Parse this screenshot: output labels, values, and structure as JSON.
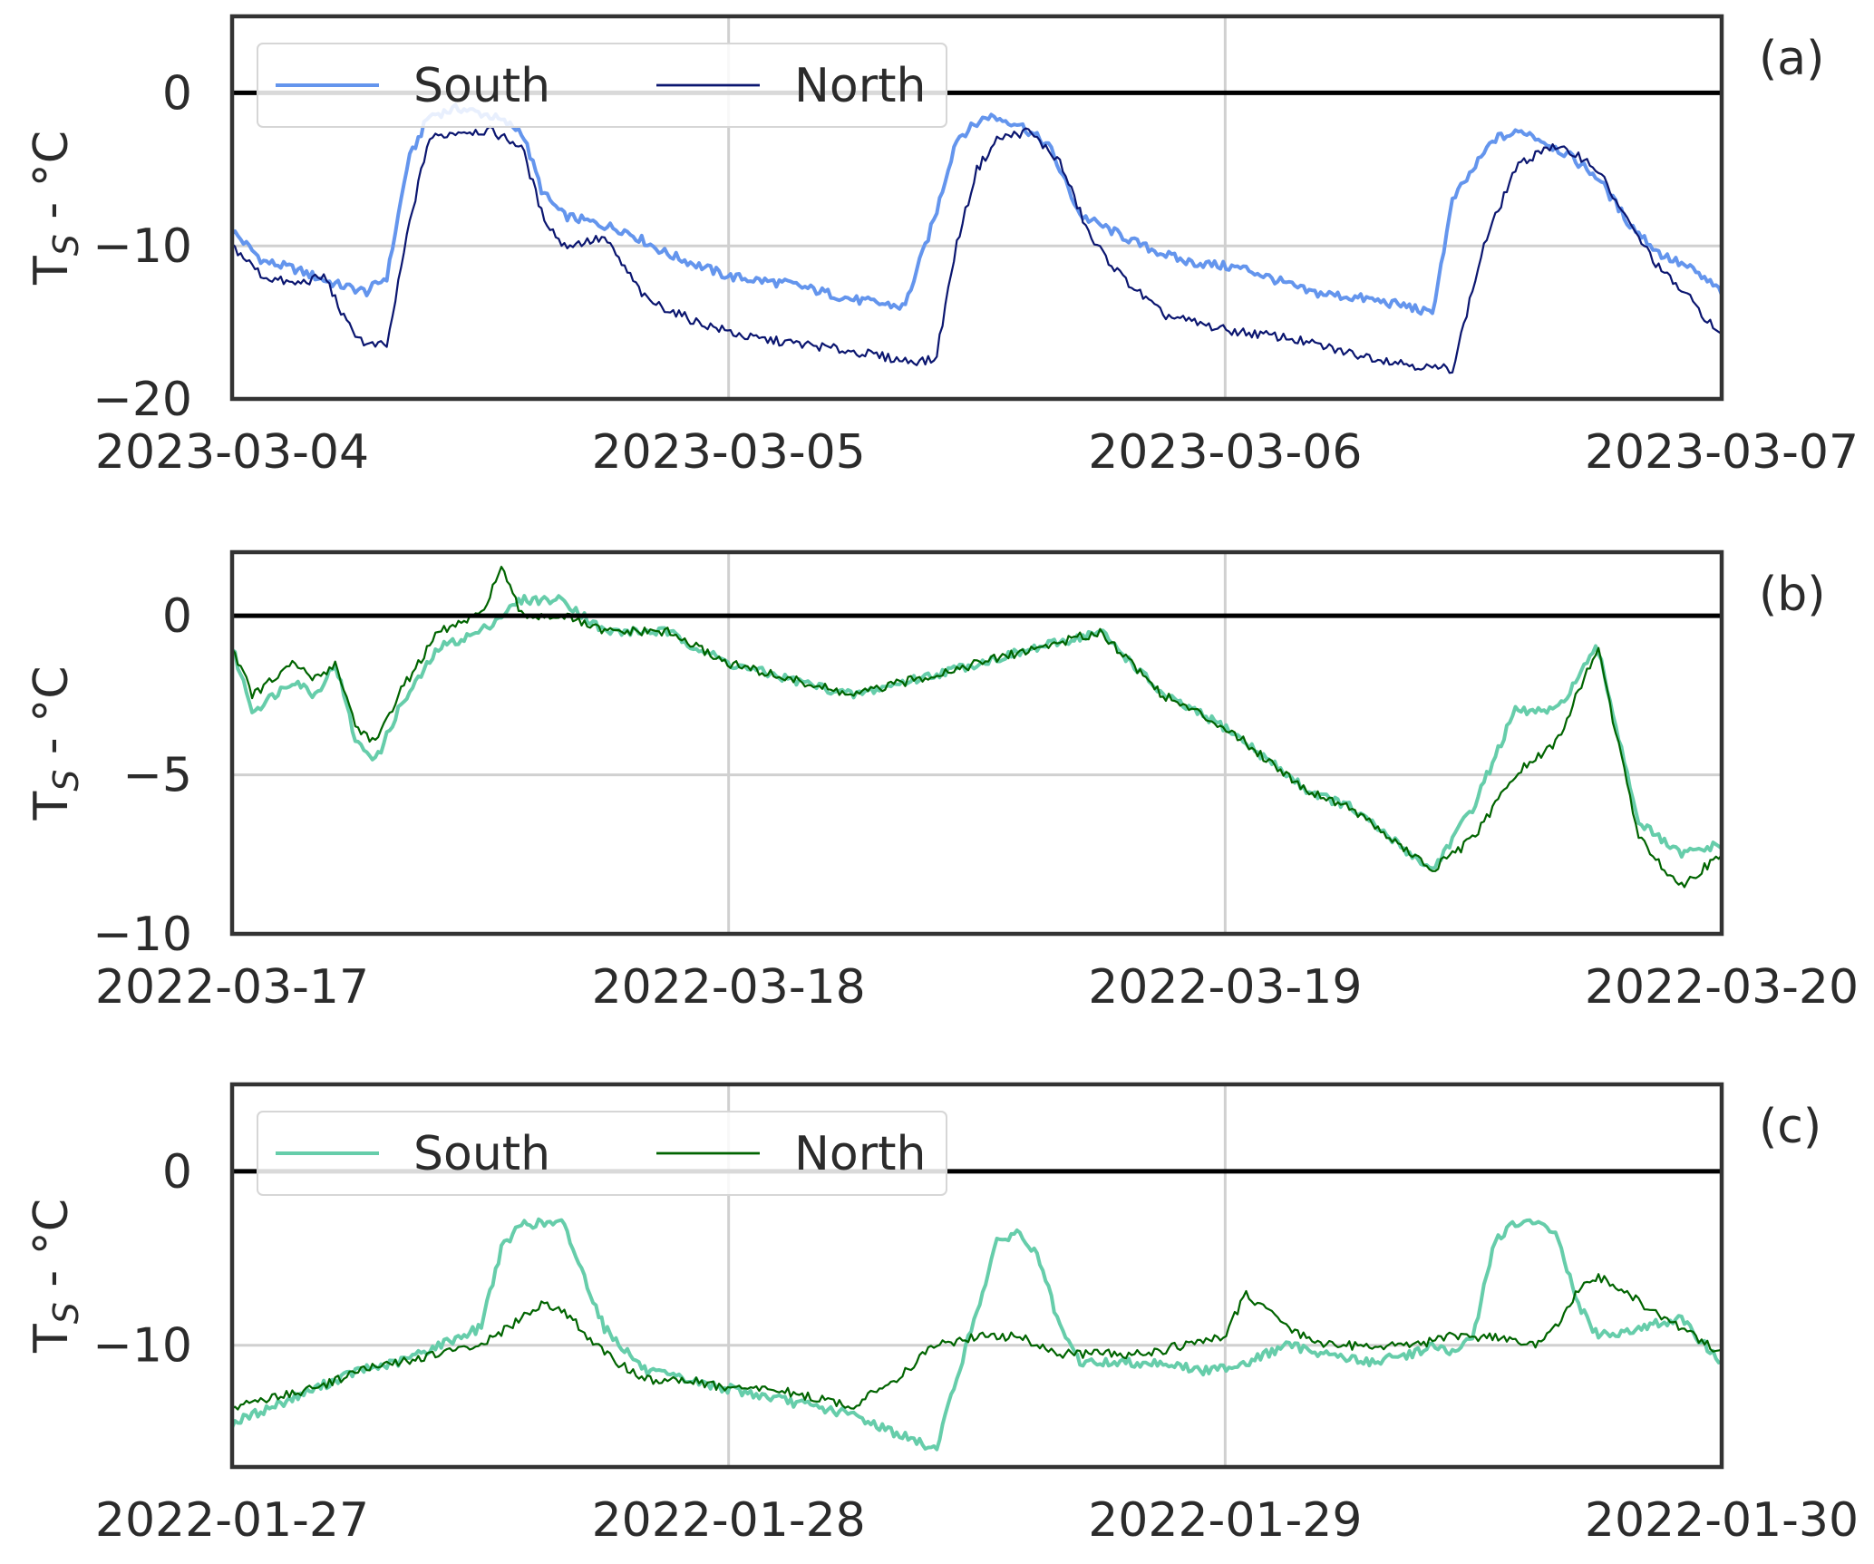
{
  "chart_data": [
    {
      "type": "line",
      "panel_label": "(a)",
      "ylabel": "T",
      "ylabel_sub": "S",
      "ylabel_tail": " - °C",
      "x_tick_labels": [
        "2023-03-04",
        "2023-03-05",
        "2023-03-06",
        "2023-03-07"
      ],
      "xlim": [
        "2023-03-04T00:00",
        "2023-03-07T00:00"
      ],
      "ylim": [
        -20,
        5
      ],
      "y_ticks": [
        0,
        -10,
        -20
      ],
      "y_tick_labels": [
        "0",
        "−10",
        "−20"
      ],
      "grid": true,
      "reference_line": 0,
      "legend": {
        "show": true,
        "placement": "upper-left",
        "entries": [
          "South",
          "North"
        ]
      },
      "colors": {
        "South": "#6495ed",
        "North": "#0b1670"
      },
      "series": [
        {
          "name": "South",
          "x": [
            "2023-03-04T00:00",
            "2023-03-04T01:30",
            "2023-03-04T03:00",
            "2023-03-04T05:00",
            "2023-03-04T06:30",
            "2023-03-04T07:30",
            "2023-03-04T08:30",
            "2023-03-04T09:30",
            "2023-03-04T11:00",
            "2023-03-04T12:30",
            "2023-03-04T14:00",
            "2023-03-04T15:00",
            "2023-03-04T16:00",
            "2023-03-04T17:30",
            "2023-03-04T19:00",
            "2023-03-04T21:00",
            "2023-03-05T00:00",
            "2023-03-05T03:00",
            "2023-03-05T06:00",
            "2023-03-05T08:30",
            "2023-03-05T10:00",
            "2023-03-05T11:00",
            "2023-03-05T12:30",
            "2023-03-05T14:00",
            "2023-03-05T15:30",
            "2023-03-05T17:00",
            "2023-03-05T18:30",
            "2023-03-05T20:00",
            "2023-03-05T22:00",
            "2023-03-06T01:00",
            "2023-03-06T04:00",
            "2023-03-06T07:00",
            "2023-03-06T09:00",
            "2023-03-06T10:00",
            "2023-03-06T11:00",
            "2023-03-06T13:00",
            "2023-03-06T14:30",
            "2023-03-06T16:30",
            "2023-03-06T18:00",
            "2023-03-06T19:30",
            "2023-03-06T21:00",
            "2023-03-06T22:30",
            "2023-03-07T00:00"
          ],
          "y": [
            -9,
            -11,
            -11.5,
            -12.5,
            -13,
            -12,
            -4.5,
            -1.5,
            -1,
            -1.5,
            -2.5,
            -6.5,
            -8,
            -8.5,
            -9,
            -10.5,
            -12,
            -12.5,
            -13.5,
            -14,
            -8,
            -3,
            -1.5,
            -2,
            -3.5,
            -8,
            -9,
            -10,
            -11,
            -11.5,
            -13,
            -13.5,
            -14,
            -14.5,
            -7,
            -3,
            -2.5,
            -4,
            -5.5,
            -8.5,
            -10.5,
            -11.5,
            -13
          ]
        },
        {
          "name": "North",
          "x": [
            "2023-03-04T00:00",
            "2023-03-04T01:30",
            "2023-03-04T03:00",
            "2023-03-04T04:30",
            "2023-03-04T05:30",
            "2023-03-04T06:30",
            "2023-03-04T07:30",
            "2023-03-04T08:30",
            "2023-03-04T09:30",
            "2023-03-04T11:00",
            "2023-03-04T12:30",
            "2023-03-04T14:00",
            "2023-03-04T15:00",
            "2023-03-04T16:00",
            "2023-03-04T18:00",
            "2023-03-04T20:00",
            "2023-03-04T22:30",
            "2023-03-05T01:00",
            "2023-03-05T04:00",
            "2023-03-05T06:30",
            "2023-03-05T08:30",
            "2023-03-05T10:00",
            "2023-03-05T11:00",
            "2023-03-05T12:00",
            "2023-03-05T13:00",
            "2023-03-05T14:30",
            "2023-03-05T16:00",
            "2023-03-05T17:30",
            "2023-03-05T19:00",
            "2023-03-05T21:00",
            "2023-03-06T00:00",
            "2023-03-06T03:00",
            "2023-03-06T06:00",
            "2023-03-06T08:00",
            "2023-03-06T10:00",
            "2023-03-06T11:00",
            "2023-03-06T12:30",
            "2023-03-06T14:00",
            "2023-03-06T15:30",
            "2023-03-06T17:00",
            "2023-03-06T18:00",
            "2023-03-06T19:30",
            "2023-03-06T21:00",
            "2023-03-06T22:30",
            "2023-03-07T00:00"
          ],
          "y": [
            -10,
            -12,
            -12.5,
            -12,
            -15,
            -16.5,
            -16.5,
            -9,
            -3,
            -2.5,
            -2.5,
            -3.5,
            -8,
            -10,
            -9.5,
            -13.5,
            -15,
            -16,
            -16.5,
            -17,
            -17.5,
            -17.5,
            -10,
            -5,
            -3,
            -2.5,
            -4.5,
            -9.5,
            -12,
            -14.5,
            -15.5,
            -16,
            -17,
            -17.5,
            -18,
            -18,
            -10,
            -5,
            -3.5,
            -4,
            -5,
            -8.5,
            -11.5,
            -13.5,
            -16
          ]
        }
      ]
    },
    {
      "type": "line",
      "panel_label": "(b)",
      "ylabel": "T",
      "ylabel_sub": "S",
      "ylabel_tail": " - °C",
      "x_tick_labels": [
        "2022-03-17",
        "2022-03-18",
        "2022-03-19",
        "2022-03-20"
      ],
      "xlim": [
        "2022-03-17T00:00",
        "2022-03-20T00:00"
      ],
      "ylim": [
        -10,
        2
      ],
      "y_ticks": [
        0,
        -5,
        -10
      ],
      "y_tick_labels": [
        "0",
        "−5",
        "−10"
      ],
      "grid": true,
      "reference_line": 0,
      "legend": {
        "show": false
      },
      "colors": {
        "South": "#66cdaa",
        "North": "#006400"
      },
      "series": [
        {
          "name": "South",
          "x": [
            "2022-03-17T00:00",
            "2022-03-17T01:00",
            "2022-03-17T02:00",
            "2022-03-17T03:00",
            "2022-03-17T04:00",
            "2022-03-17T05:00",
            "2022-03-17T06:00",
            "2022-03-17T07:00",
            "2022-03-17T08:00",
            "2022-03-17T10:00",
            "2022-03-17T12:00",
            "2022-03-17T14:00",
            "2022-03-17T16:00",
            "2022-03-17T18:00",
            "2022-03-17T21:00",
            "2022-03-18T00:00",
            "2022-03-18T03:00",
            "2022-03-18T06:00",
            "2022-03-18T09:00",
            "2022-03-18T12:00",
            "2022-03-18T15:00",
            "2022-03-18T18:00",
            "2022-03-18T21:00",
            "2022-03-19T00:00",
            "2022-03-19T02:00",
            "2022-03-19T04:00",
            "2022-03-19T06:00",
            "2022-03-19T08:00",
            "2022-03-19T10:00",
            "2022-03-19T12:00",
            "2022-03-19T14:00",
            "2022-03-19T16:00",
            "2022-03-19T18:00",
            "2022-03-19T20:00",
            "2022-03-19T22:00",
            "2022-03-20T00:00"
          ],
          "y": [
            -1,
            -3,
            -2.5,
            -2,
            -2.5,
            -1.5,
            -4,
            -4.5,
            -3,
            -1,
            -0.5,
            0.5,
            0.5,
            -0.5,
            -0.5,
            -1.5,
            -2,
            -2.5,
            -2,
            -1.5,
            -1,
            -0.5,
            -2.5,
            -3.5,
            -4.5,
            -5.5,
            -6,
            -7,
            -8,
            -6,
            -3,
            -3,
            -1,
            -6.5,
            -7.5,
            -7.2
          ]
        },
        {
          "name": "North",
          "x": [
            "2022-03-17T00:00",
            "2022-03-17T01:00",
            "2022-03-17T02:00",
            "2022-03-17T03:00",
            "2022-03-17T04:00",
            "2022-03-17T05:00",
            "2022-03-17T06:00",
            "2022-03-17T07:00",
            "2022-03-17T08:00",
            "2022-03-17T10:00",
            "2022-03-17T12:00",
            "2022-03-17T13:00",
            "2022-03-17T14:00",
            "2022-03-17T16:00",
            "2022-03-17T18:00",
            "2022-03-17T21:00",
            "2022-03-18T00:00",
            "2022-03-18T03:00",
            "2022-03-18T06:00",
            "2022-03-18T09:00",
            "2022-03-18T12:00",
            "2022-03-18T15:00",
            "2022-03-18T18:00",
            "2022-03-18T21:00",
            "2022-03-19T00:00",
            "2022-03-19T02:00",
            "2022-03-19T04:00",
            "2022-03-19T06:00",
            "2022-03-19T08:00",
            "2022-03-19T10:00",
            "2022-03-19T12:00",
            "2022-03-19T14:00",
            "2022-03-19T16:00",
            "2022-03-19T18:00",
            "2022-03-19T20:00",
            "2022-03-19T22:00",
            "2022-03-20T00:00"
          ],
          "y": [
            -1,
            -2.5,
            -2,
            -1.5,
            -2,
            -1.5,
            -3.5,
            -4,
            -2.5,
            -0.5,
            0,
            1.5,
            0,
            0,
            -0.5,
            -0.5,
            -1.5,
            -2,
            -2.5,
            -2,
            -1.5,
            -1,
            -0.5,
            -2.5,
            -3.5,
            -4.5,
            -5.5,
            -6,
            -7,
            -8,
            -7,
            -5,
            -4,
            -1,
            -7,
            -8.5,
            -7.5
          ]
        }
      ]
    },
    {
      "type": "line",
      "panel_label": "(c)",
      "ylabel": "T",
      "ylabel_sub": "S",
      "ylabel_tail": " - °C",
      "x_tick_labels": [
        "2022-01-27",
        "2022-01-28",
        "2022-01-29",
        "2022-01-30"
      ],
      "xlim": [
        "2022-01-27T00:00",
        "2022-01-30T00:00"
      ],
      "ylim": [
        -17,
        5
      ],
      "y_ticks": [
        0,
        -10
      ],
      "y_tick_labels": [
        "0",
        "−10"
      ],
      "grid": true,
      "reference_line": 0,
      "legend": {
        "show": true,
        "placement": "upper-left",
        "entries": [
          "South",
          "North"
        ]
      },
      "colors": {
        "South": "#66cdaa",
        "North": "#006400"
      },
      "series": [
        {
          "name": "South",
          "x": [
            "2022-01-27T00:00",
            "2022-01-27T02:00",
            "2022-01-27T04:00",
            "2022-01-27T06:00",
            "2022-01-27T08:00",
            "2022-01-27T10:00",
            "2022-01-27T11:00",
            "2022-01-27T12:00",
            "2022-01-27T13:00",
            "2022-01-27T14:00",
            "2022-01-27T15:00",
            "2022-01-27T16:00",
            "2022-01-27T17:00",
            "2022-01-27T18:00",
            "2022-01-27T20:00",
            "2022-01-27T22:00",
            "2022-01-28T00:00",
            "2022-01-28T02:00",
            "2022-01-28T04:00",
            "2022-01-28T06:00",
            "2022-01-28T08:00",
            "2022-01-28T09:00",
            "2022-01-28T10:00",
            "2022-01-28T11:00",
            "2022-01-28T12:00",
            "2022-01-28T13:00",
            "2022-01-28T14:00",
            "2022-01-28T15:00",
            "2022-01-28T16:00",
            "2022-01-28T17:00",
            "2022-01-28T19:00",
            "2022-01-28T21:00",
            "2022-01-28T23:00",
            "2022-01-29T01:00",
            "2022-01-29T03:00",
            "2022-01-29T05:00",
            "2022-01-29T07:00",
            "2022-01-29T09:00",
            "2022-01-29T10:00",
            "2022-01-29T11:00",
            "2022-01-29T12:00",
            "2022-01-29T13:00",
            "2022-01-29T14:00",
            "2022-01-29T15:00",
            "2022-01-29T16:00",
            "2022-01-29T17:00",
            "2022-01-29T18:00",
            "2022-01-29T20:00",
            "2022-01-29T22:00",
            "2022-01-30T00:00"
          ],
          "y": [
            -14.5,
            -13.5,
            -12.5,
            -11.5,
            -11,
            -10,
            -9.5,
            -9,
            -4.5,
            -3,
            -3,
            -3,
            -6,
            -9,
            -11.5,
            -12,
            -12.5,
            -13,
            -13.5,
            -14,
            -15,
            -15.5,
            -16,
            -12,
            -8,
            -4,
            -3.5,
            -5,
            -9,
            -11,
            -11,
            -11,
            -11.5,
            -11,
            -10,
            -10.5,
            -11,
            -10.5,
            -10,
            -10.5,
            -9.5,
            -4,
            -3,
            -3,
            -3.5,
            -7.5,
            -9.5,
            -9,
            -8.5,
            -11
          ]
        },
        {
          "name": "North",
          "x": [
            "2022-01-27T00:00",
            "2022-01-27T02:00",
            "2022-01-27T04:00",
            "2022-01-27T06:00",
            "2022-01-27T08:00",
            "2022-01-27T10:00",
            "2022-01-27T12:00",
            "2022-01-27T14:00",
            "2022-01-27T15:00",
            "2022-01-27T16:00",
            "2022-01-27T18:00",
            "2022-01-27T20:00",
            "2022-01-27T22:00",
            "2022-01-28T00:00",
            "2022-01-28T02:00",
            "2022-01-28T04:00",
            "2022-01-28T06:00",
            "2022-01-28T08:00",
            "2022-01-28T10:00",
            "2022-01-28T12:00",
            "2022-01-28T14:00",
            "2022-01-28T16:00",
            "2022-01-28T18:00",
            "2022-01-28T20:00",
            "2022-01-28T22:00",
            "2022-01-29T00:00",
            "2022-01-29T01:00",
            "2022-01-29T03:00",
            "2022-01-29T05:00",
            "2022-01-29T07:00",
            "2022-01-29T09:00",
            "2022-01-29T11:00",
            "2022-01-29T13:00",
            "2022-01-29T15:00",
            "2022-01-29T16:00",
            "2022-01-29T17:00",
            "2022-01-29T18:00",
            "2022-01-29T20:00",
            "2022-01-29T22:00",
            "2022-01-30T00:00"
          ],
          "y": [
            -13.5,
            -13,
            -12.5,
            -11.5,
            -11,
            -10.5,
            -10,
            -8.5,
            -7.5,
            -8,
            -10.5,
            -12,
            -12,
            -12.5,
            -12.5,
            -13,
            -13.5,
            -12,
            -10,
            -9.5,
            -9.5,
            -10.5,
            -10.5,
            -10.5,
            -10,
            -9.5,
            -7,
            -9,
            -10,
            -10,
            -10,
            -9.5,
            -9.5,
            -10,
            -9,
            -7,
            -6,
            -7.5,
            -9,
            -10.5
          ]
        }
      ]
    }
  ]
}
